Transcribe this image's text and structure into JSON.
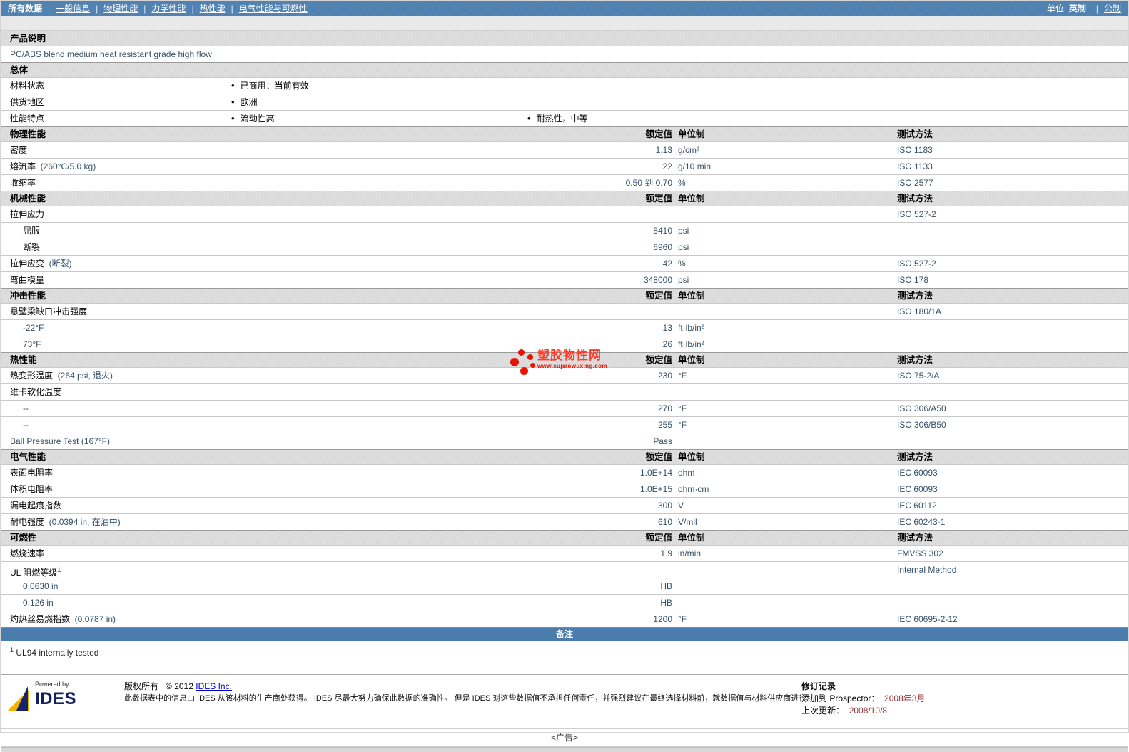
{
  "colors": {
    "accent": "#4a7cae",
    "value_text": "#33516b",
    "watermark_red": "#e81300",
    "date_red": "#993333",
    "link": "#0000cc"
  },
  "nav": {
    "current": "所有数据",
    "links": [
      "一般信息",
      "物理性能",
      "力学性能",
      "热性能",
      "电气性能与可燃性"
    ],
    "units_label": "单位",
    "unit_current": "英制",
    "unit_link": "公制"
  },
  "watermark": {
    "title": "塑胶物性网",
    "url": "www.sujiaowuxing.com"
  },
  "table": {
    "col_value": "额定值",
    "col_unit": "单位制",
    "col_test": "测试方法",
    "rows": [
      {
        "t": "header",
        "label": "产品说明",
        "cols": false
      },
      {
        "t": "desc",
        "text": "PC/ABS blend medium heat resistant grade high flow"
      },
      {
        "t": "header",
        "label": "总体",
        "cols": false
      },
      {
        "t": "bullets",
        "label": "材料状态",
        "b1": "已商用：当前有效",
        "b2": ""
      },
      {
        "t": "bullets",
        "label": "供货地区",
        "b1": "欧洲",
        "b2": ""
      },
      {
        "t": "bullets",
        "label": "性能特点",
        "b1": "流动性高",
        "b2": "耐热性，中等"
      },
      {
        "t": "header",
        "label": "物理性能",
        "cols": true
      },
      {
        "t": "prop",
        "label": "密度",
        "value": "1.13",
        "unit": "g/cm³",
        "test": "ISO 1183"
      },
      {
        "t": "prop",
        "label": "熔流率",
        "cond": "(260°C/5.0 kg)",
        "value": "22",
        "unit": "g/10 min",
        "test": "ISO 1133"
      },
      {
        "t": "prop",
        "label": "收缩率",
        "value": "0.50 到 0.70",
        "unit": "%",
        "test": "ISO 2577"
      },
      {
        "t": "header",
        "label": "机械性能",
        "cols": true
      },
      {
        "t": "prop",
        "label": "拉伸应力",
        "test": "ISO 527-2"
      },
      {
        "t": "prop",
        "label": "屈服",
        "indent": 1,
        "value": "8410",
        "unit": "psi"
      },
      {
        "t": "prop",
        "label": "断裂",
        "indent": 1,
        "value": "6960",
        "unit": "psi"
      },
      {
        "t": "prop",
        "label": "拉伸应变",
        "cond": "(断裂)",
        "value": "42",
        "unit": "%",
        "test": "ISO 527-2"
      },
      {
        "t": "prop",
        "label": "弯曲模量",
        "value": "348000",
        "unit": "psi",
        "test": "ISO 178"
      },
      {
        "t": "header",
        "label": "冲击性能",
        "cols": true
      },
      {
        "t": "prop",
        "label": "悬壁梁缺口冲击强度",
        "test": "ISO 180/1A"
      },
      {
        "t": "prop",
        "label": "-22°F",
        "indent": 1,
        "blue": true,
        "value": "13",
        "unit": "ft·lb/in²"
      },
      {
        "t": "prop",
        "label": "73°F",
        "indent": 1,
        "blue": true,
        "value": "26",
        "unit": "ft·lb/in²"
      },
      {
        "t": "header",
        "label": "热性能",
        "cols": true
      },
      {
        "t": "prop",
        "label": "热变形温度",
        "cond": "(264 psi, 退火)",
        "value": "230",
        "unit": "°F",
        "test": "ISO 75-2/A"
      },
      {
        "t": "prop",
        "label": "维卡软化温度"
      },
      {
        "t": "prop",
        "label": "--",
        "indent": 1,
        "blue": true,
        "value": "270",
        "unit": "°F",
        "test": "ISO 306/A50"
      },
      {
        "t": "prop",
        "label": "--",
        "indent": 1,
        "blue": true,
        "value": "255",
        "unit": "°F",
        "test": "ISO 306/B50"
      },
      {
        "t": "prop",
        "label": "Ball Pressure Test (167°F)",
        "blue": true,
        "value": "Pass"
      },
      {
        "t": "header",
        "label": "电气性能",
        "cols": true
      },
      {
        "t": "prop",
        "label": "表面电阻率",
        "value": "1.0E+14",
        "unit": "ohm",
        "test": "IEC 60093"
      },
      {
        "t": "prop",
        "label": "体积电阻率",
        "value": "1.0E+15",
        "unit": "ohm·cm",
        "test": "IEC 60093"
      },
      {
        "t": "prop",
        "label": "漏电起痕指数",
        "value": "300",
        "unit": "V",
        "test": "IEC 60112"
      },
      {
        "t": "prop",
        "label": "耐电强度",
        "cond": "(0.0394 in, 在油中)",
        "value": "610",
        "unit": "V/mil",
        "test": "IEC 60243-1"
      },
      {
        "t": "header",
        "label": "可燃性",
        "cols": true
      },
      {
        "t": "prop",
        "label": "燃烧速率",
        "value": "1.9",
        "unit": "in/min",
        "test": "FMVSS 302"
      },
      {
        "t": "prop",
        "label": "UL 阻燃等级",
        "sup": "1",
        "test": "Internal Method"
      },
      {
        "t": "prop",
        "label": "0.0630 in",
        "indent": 1,
        "blue": true,
        "value": "HB"
      },
      {
        "t": "prop",
        "label": "0.126 in",
        "indent": 1,
        "blue": true,
        "value": "HB"
      },
      {
        "t": "prop",
        "label": "灼热丝易燃指数",
        "cond": "(0.0787 in)",
        "value": "1200",
        "unit": "°F",
        "test": "IEC 60695-2-12"
      },
      {
        "t": "notebar",
        "label": "备注"
      },
      {
        "t": "footnote",
        "sup": "1",
        "text": "UL94 internally tested"
      }
    ]
  },
  "footer": {
    "powered_by": "Powered by",
    "logo_text": "IDES",
    "copyright_label": "版权所有",
    "copyright_year": "© 2012",
    "copyright_link": "IDES Inc.",
    "disclaimer": "此数据表中的信息由 IDES 从该材料的生产商处获得。 IDES 尽最大努力确保此数据的准确性。 但是 IDES 对这些数据值不承担任何责任，并强烈建议在最终选择材料前，就数据值与材料供应商进行验证。",
    "revision_title": "修订记录",
    "added_label": "添加到 Prospector：",
    "added_value": "2008年3月",
    "updated_label": "上次更新：",
    "updated_value": "2008/10/8"
  },
  "ad_label": "<广告>"
}
